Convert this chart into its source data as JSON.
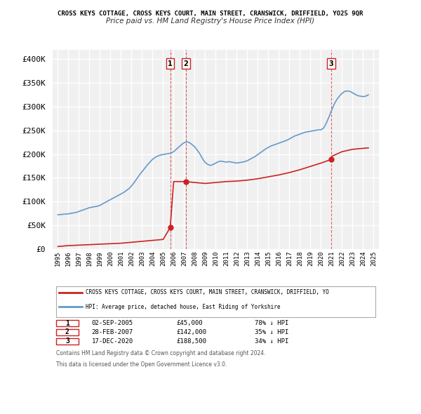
{
  "title": "CROSS KEYS COTTAGE, CROSS KEYS COURT, MAIN STREET, CRANSWICK, DRIFFIELD, YO25 9QR",
  "subtitle": "Price paid vs. HM Land Registry's House Price Index (HPI)",
  "ylabel": "",
  "xlabel": "",
  "ylim": [
    0,
    420000
  ],
  "yticks": [
    0,
    50000,
    100000,
    150000,
    200000,
    250000,
    300000,
    350000,
    400000
  ],
  "ytick_labels": [
    "£0",
    "£50K",
    "£100K",
    "£150K",
    "£200K",
    "£250K",
    "£300K",
    "£350K",
    "£400K"
  ],
  "xlim_start": 1994.5,
  "xlim_end": 2025.5,
  "background_color": "#ffffff",
  "plot_bg_color": "#f0f0f0",
  "grid_color": "#ffffff",
  "hpi_color": "#6699cc",
  "price_color": "#cc2222",
  "marker_color": "#cc2222",
  "transactions": [
    {
      "date": "02-SEP-2005",
      "price": 45000,
      "hpi_pct": "78%",
      "label": "1",
      "year": 2005.67
    },
    {
      "date": "28-FEB-2007",
      "price": 142000,
      "hpi_pct": "35%",
      "label": "2",
      "year": 2007.17
    },
    {
      "date": "17-DEC-2020",
      "price": 188500,
      "hpi_pct": "34%",
      "label": "3",
      "year": 2020.96
    }
  ],
  "legend_property_label": "CROSS KEYS COTTAGE, CROSS KEYS COURT, MAIN STREET, CRANSWICK, DRIFFIELD, YO",
  "legend_hpi_label": "HPI: Average price, detached house, East Riding of Yorkshire",
  "footer1": "Contains HM Land Registry data © Crown copyright and database right 2024.",
  "footer2": "This data is licensed under the Open Government Licence v3.0.",
  "hpi_data": {
    "years": [
      1995.0,
      1995.25,
      1995.5,
      1995.75,
      1996.0,
      1996.25,
      1996.5,
      1996.75,
      1997.0,
      1997.25,
      1997.5,
      1997.75,
      1998.0,
      1998.25,
      1998.5,
      1998.75,
      1999.0,
      1999.25,
      1999.5,
      1999.75,
      2000.0,
      2000.25,
      2000.5,
      2000.75,
      2001.0,
      2001.25,
      2001.5,
      2001.75,
      2002.0,
      2002.25,
      2002.5,
      2002.75,
      2003.0,
      2003.25,
      2003.5,
      2003.75,
      2004.0,
      2004.25,
      2004.5,
      2004.75,
      2005.0,
      2005.25,
      2005.5,
      2005.75,
      2006.0,
      2006.25,
      2006.5,
      2006.75,
      2007.0,
      2007.25,
      2007.5,
      2007.75,
      2008.0,
      2008.25,
      2008.5,
      2008.75,
      2009.0,
      2009.25,
      2009.5,
      2009.75,
      2010.0,
      2010.25,
      2010.5,
      2010.75,
      2011.0,
      2011.25,
      2011.5,
      2011.75,
      2012.0,
      2012.25,
      2012.5,
      2012.75,
      2013.0,
      2013.25,
      2013.5,
      2013.75,
      2014.0,
      2014.25,
      2014.5,
      2014.75,
      2015.0,
      2015.25,
      2015.5,
      2015.75,
      2016.0,
      2016.25,
      2016.5,
      2016.75,
      2017.0,
      2017.25,
      2017.5,
      2017.75,
      2018.0,
      2018.25,
      2018.5,
      2018.75,
      2019.0,
      2019.25,
      2019.5,
      2019.75,
      2020.0,
      2020.25,
      2020.5,
      2020.75,
      2021.0,
      2021.25,
      2021.5,
      2021.75,
      2022.0,
      2022.25,
      2022.5,
      2022.75,
      2023.0,
      2023.25,
      2023.5,
      2023.75,
      2024.0,
      2024.25,
      2024.5
    ],
    "values": [
      72000,
      72500,
      73000,
      73500,
      74000,
      75000,
      76000,
      77000,
      79000,
      81000,
      83000,
      85000,
      87000,
      88000,
      89000,
      90000,
      92000,
      95000,
      98000,
      101000,
      104000,
      107000,
      110000,
      113000,
      116000,
      119000,
      123000,
      127000,
      133000,
      140000,
      148000,
      156000,
      163000,
      170000,
      177000,
      183000,
      189000,
      193000,
      196000,
      198000,
      199000,
      200000,
      201000,
      202000,
      205000,
      210000,
      215000,
      220000,
      224000,
      226000,
      224000,
      220000,
      215000,
      208000,
      200000,
      190000,
      182000,
      178000,
      176000,
      178000,
      181000,
      184000,
      185000,
      184000,
      183000,
      184000,
      183000,
      182000,
      181000,
      182000,
      183000,
      184000,
      186000,
      189000,
      192000,
      195000,
      199000,
      203000,
      207000,
      211000,
      214000,
      217000,
      219000,
      221000,
      223000,
      225000,
      227000,
      229000,
      232000,
      235000,
      238000,
      240000,
      242000,
      244000,
      246000,
      247000,
      248000,
      249000,
      250000,
      251000,
      251000,
      255000,
      265000,
      278000,
      292000,
      305000,
      315000,
      322000,
      328000,
      332000,
      333000,
      332000,
      329000,
      326000,
      323000,
      322000,
      321000,
      322000,
      325000
    ]
  },
  "price_data": {
    "years": [
      1995.0,
      1995.5,
      1996.0,
      1997.0,
      1998.0,
      1999.0,
      2000.0,
      2001.0,
      2002.0,
      2003.0,
      2004.0,
      2005.0,
      2005.67,
      2006.0,
      2007.17,
      2008.0,
      2009.0,
      2010.0,
      2011.0,
      2012.0,
      2013.0,
      2014.0,
      2015.0,
      2016.0,
      2017.0,
      2018.0,
      2019.0,
      2020.0,
      2020.96,
      2021.0,
      2022.0,
      2023.0,
      2024.0,
      2024.5
    ],
    "values": [
      5000,
      6000,
      7000,
      8000,
      9000,
      10000,
      11000,
      12000,
      14000,
      16000,
      18000,
      20000,
      45000,
      142000,
      142000,
      140000,
      138000,
      140000,
      142000,
      143000,
      145000,
      148000,
      152000,
      156000,
      161000,
      167000,
      174000,
      181000,
      188500,
      195000,
      205000,
      210000,
      212000,
      213000
    ]
  }
}
